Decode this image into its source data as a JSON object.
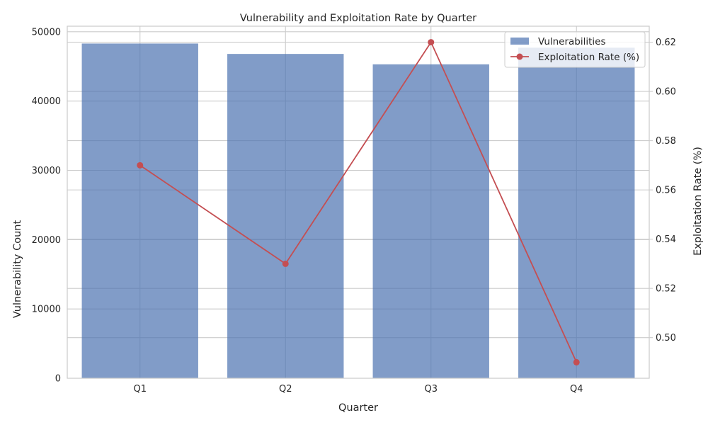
{
  "chart_data": {
    "type": "bar",
    "title": "Vulnerability and Exploitation Rate by Quarter",
    "xlabel": "Quarter",
    "ylabel": "Vulnerability Count",
    "y2label": "Exploitation Rate (%)",
    "categories": [
      "Q1",
      "Q2",
      "Q3",
      "Q4"
    ],
    "series": [
      {
        "name": "Vulnerabilities",
        "type": "bar",
        "axis": "left",
        "color": "#4c72b0",
        "values": [
          48300,
          46800,
          45300,
          47700
        ]
      },
      {
        "name": "Exploitation Rate (%)",
        "type": "line",
        "axis": "right",
        "color": "#c44e52",
        "marker": "circle",
        "values": [
          0.57,
          0.53,
          0.62,
          0.49
        ]
      }
    ],
    "ylim": [
      0,
      50800
    ],
    "y2lim": [
      0.4835,
      0.6265
    ],
    "yticks": [
      0,
      10000,
      20000,
      30000,
      40000,
      50000
    ],
    "y2ticks": [
      0.5,
      0.52,
      0.54,
      0.56,
      0.58,
      0.6,
      0.62
    ],
    "y2tick_labels": [
      "0.50",
      "0.52",
      "0.54",
      "0.56",
      "0.58",
      "0.60",
      "0.62"
    ],
    "grid": true,
    "legend_position": "top-right"
  }
}
